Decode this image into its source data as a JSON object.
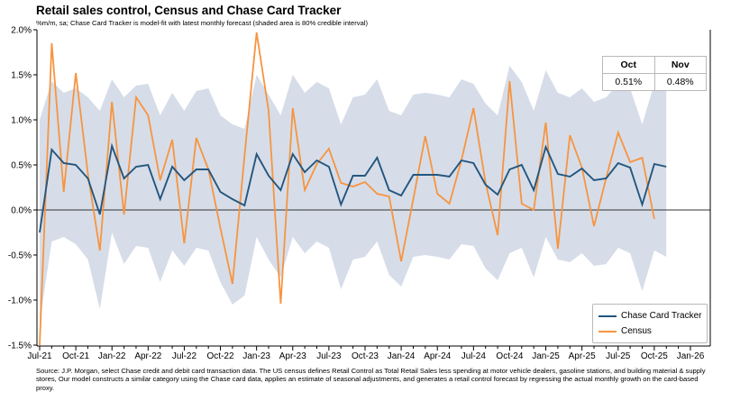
{
  "header": {
    "title": "Retail sales control, Census and Chase Card Tracker",
    "subtitle": "%m/m, sa; Chase Card Tracker is model-fit with latest monthly forecast (shaded area is 80% credible interval)"
  },
  "forecast_table": {
    "columns": [
      "Oct",
      "Nov"
    ],
    "values": [
      "0.51%",
      "0.48%"
    ]
  },
  "legend": {
    "items": [
      {
        "label": "Chase Card Tracker",
        "color": "#24567e"
      },
      {
        "label": "Census",
        "color": "#f79440"
      }
    ]
  },
  "footnote": "Source: J.P. Morgan, select Chase credit and debit card transaction data. The US census defines Retail Control as Total Retail Sales less spending at motor vehicle dealers, gasoline stations, and building material & supply stores, Our model constructs a similar category using the Chase card data, applies an estimate of seasonal adjustments, and generates a retail control forecast by regressing the actual monthly growth on the card-based proxy.",
  "chart_data": {
    "type": "line",
    "title": "Retail sales control, Census and Chase Card Tracker",
    "ylabel": "%m/m, sa",
    "ylim": [
      -1.5,
      2.0
    ],
    "y_tick_labels": [
      "2.0%",
      "1.5%",
      "1.0%",
      "0.5%",
      "0.0%",
      "-0.5%",
      "-1.0%",
      "-1.5%"
    ],
    "y_tick_values": [
      2.0,
      1.5,
      1.0,
      0.5,
      0.0,
      -0.5,
      -1.0,
      -1.5
    ],
    "x_tick_labels": [
      "Jul-21",
      "Oct-21",
      "Jan-22",
      "Apr-22",
      "Jul-22",
      "Oct-22",
      "Jan-23",
      "Apr-23",
      "Jul-23",
      "Oct-23",
      "Jan-24",
      "Apr-24",
      "Jul-24",
      "Oct-24",
      "Jan-25",
      "Apr-25",
      "Jul-25",
      "Oct-25",
      "Jan-26"
    ],
    "grid": false,
    "legend_position": "lower right",
    "categories": [
      "Jul-21",
      "Aug-21",
      "Sep-21",
      "Oct-21",
      "Nov-21",
      "Dec-21",
      "Jan-22",
      "Feb-22",
      "Mar-22",
      "Apr-22",
      "May-22",
      "Jun-22",
      "Jul-22",
      "Aug-22",
      "Sep-22",
      "Oct-22",
      "Nov-22",
      "Dec-22",
      "Jan-23",
      "Feb-23",
      "Mar-23",
      "Apr-23",
      "May-23",
      "Jun-23",
      "Jul-23",
      "Aug-23",
      "Sep-23",
      "Oct-23",
      "Nov-23",
      "Dec-23",
      "Jan-24",
      "Feb-24",
      "Mar-24",
      "Apr-24",
      "May-24",
      "Jun-24",
      "Jul-24",
      "Aug-24",
      "Sep-24",
      "Oct-24",
      "Nov-24",
      "Dec-24",
      "Jan-25",
      "Feb-25",
      "Mar-25",
      "Apr-25",
      "May-25",
      "Jun-25",
      "Jul-25",
      "Aug-25",
      "Sep-25",
      "Oct-25",
      "Nov-25"
    ],
    "series": [
      {
        "name": "Chase Card Tracker",
        "color": "#24567e",
        "values": [
          -0.25,
          0.67,
          0.52,
          0.5,
          0.35,
          -0.05,
          0.71,
          0.35,
          0.48,
          0.5,
          0.12,
          0.48,
          0.33,
          0.45,
          0.45,
          0.2,
          0.12,
          0.05,
          0.62,
          0.38,
          0.22,
          0.62,
          0.42,
          0.55,
          0.48,
          0.06,
          0.38,
          0.38,
          0.58,
          0.22,
          0.16,
          0.39,
          0.39,
          0.39,
          0.37,
          0.55,
          0.52,
          0.28,
          0.17,
          0.45,
          0.5,
          0.22,
          0.7,
          0.4,
          0.37,
          0.46,
          0.33,
          0.35,
          0.52,
          0.47,
          0.06,
          0.51,
          0.48
        ]
      },
      {
        "name": "Census",
        "color": "#f79440",
        "values": [
          -1.5,
          1.85,
          0.2,
          1.52,
          0.4,
          -0.45,
          1.2,
          -0.05,
          1.25,
          1.05,
          0.33,
          0.78,
          -0.37,
          0.8,
          0.45,
          -0.2,
          -0.82,
          0.6,
          1.97,
          1.1,
          -1.04,
          1.13,
          0.22,
          0.51,
          0.68,
          0.3,
          0.26,
          0.31,
          0.18,
          0.15,
          -0.57,
          0.12,
          0.82,
          0.18,
          0.07,
          0.55,
          1.13,
          0.3,
          -0.28,
          1.43,
          0.07,
          0.0,
          0.97,
          -0.43,
          0.83,
          0.47,
          -0.18,
          0.35,
          0.86,
          0.53,
          0.58,
          -0.1,
          null
        ]
      }
    ],
    "band": {
      "label": "80% credible interval",
      "color": "#d6dde8",
      "upper": [
        1.0,
        1.43,
        1.3,
        1.35,
        1.25,
        1.1,
        1.45,
        1.25,
        1.38,
        1.4,
        1.05,
        1.3,
        1.1,
        1.32,
        1.35,
        1.05,
        0.95,
        0.9,
        1.5,
        1.28,
        1.05,
        1.5,
        1.3,
        1.42,
        1.35,
        0.95,
        1.25,
        1.28,
        1.45,
        1.1,
        1.05,
        1.28,
        1.3,
        1.28,
        1.25,
        1.45,
        1.4,
        1.18,
        1.05,
        1.6,
        1.42,
        1.1,
        1.55,
        1.3,
        1.25,
        1.35,
        1.2,
        1.25,
        1.4,
        1.35,
        0.95,
        1.4,
        1.45
      ],
      "lower": [
        -1.25,
        -0.35,
        -0.3,
        -0.38,
        -0.55,
        -1.1,
        -0.25,
        -0.6,
        -0.4,
        -0.42,
        -0.8,
        -0.45,
        -0.62,
        -0.42,
        -0.45,
        -0.8,
        -1.05,
        -0.95,
        -0.3,
        -0.55,
        -0.75,
        -0.3,
        -0.48,
        -0.35,
        -0.42,
        -0.88,
        -0.55,
        -0.52,
        -0.35,
        -0.72,
        -0.85,
        -0.52,
        -0.5,
        -0.52,
        -0.55,
        -0.38,
        -0.4,
        -0.65,
        -0.78,
        -0.48,
        -0.42,
        -0.75,
        -0.3,
        -0.55,
        -0.58,
        -0.48,
        -0.62,
        -0.6,
        -0.42,
        -0.48,
        -0.9,
        -0.45,
        -0.52
      ]
    },
    "annotations": {
      "forecast_months": [
        "Oct",
        "Nov"
      ],
      "forecast_values": [
        "0.51%",
        "0.48%"
      ]
    }
  },
  "colors": {
    "chase_line": "#24567e",
    "census_line": "#f79440",
    "band_fill": "#d6dde8",
    "axis": "#000000",
    "zero_line": "#333333",
    "table_border": "#b9b9b9"
  }
}
